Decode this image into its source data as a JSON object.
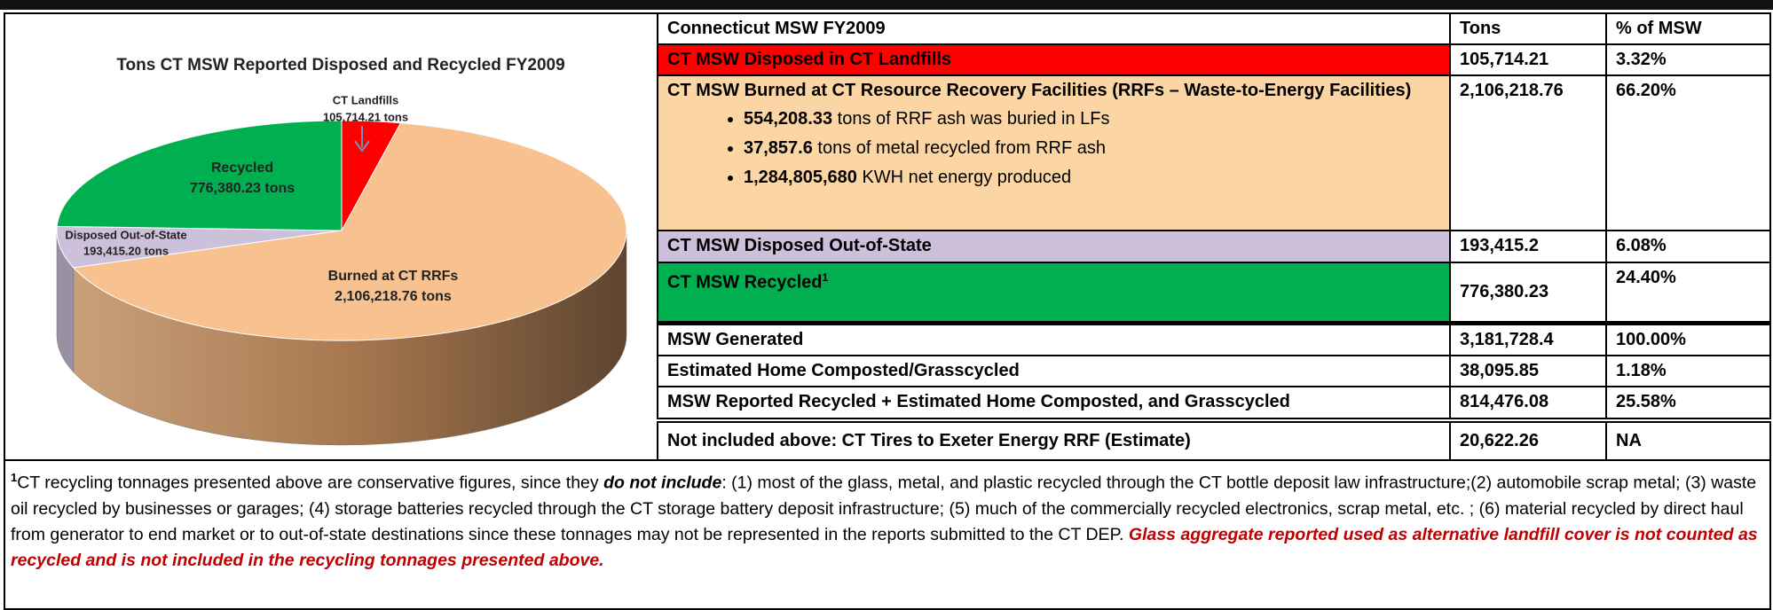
{
  "pie_chart": {
    "type": "pie",
    "title": "Tons CT MSW Reported Disposed and Recycled FY2009",
    "slices": [
      {
        "name": "CT Landfills",
        "value": 105714.21,
        "value_label": "105,714.21 tons",
        "color": "#ff0000"
      },
      {
        "name": "Burned at CT RRFs",
        "value": 2106218.76,
        "value_label": "2,106,218.76 tons",
        "color": "#f8c290"
      },
      {
        "name": "Disposed Out-of-State",
        "value": 193415.2,
        "value_label": "193,415.20 tons",
        "color": "#ccc0da"
      },
      {
        "name": "Recycled",
        "value": 776380.23,
        "value_label": "776,380.23 tons",
        "color": "#00b050"
      }
    ]
  },
  "table": {
    "header": [
      "Connecticut  MSW  FY2009",
      "Tons",
      "% of MSW"
    ],
    "rows": [
      {
        "cells": [
          "CT MSW Disposed in CT Landfills",
          "105,714.21",
          "3.32%"
        ]
      },
      {
        "cells": [
          "CT MSW Burned at CT Resource Recovery Facilities (RRFs – Waste-to-Energy Facilities)",
          "2,106,218.76",
          "66.20%"
        ],
        "bullets": [
          {
            "bold": "554,208.33",
            "text": " tons of RRF ash was buried in LFs"
          },
          {
            "bold": "37,857.6",
            "text": " tons of metal recycled from RRF ash"
          },
          {
            "bold": "1,284,805,680",
            "text": " KWH net energy produced"
          }
        ]
      },
      {
        "cells": [
          "CT MSW Disposed Out-of-State",
          "193,415.2",
          "6.08%"
        ]
      },
      {
        "cells": [
          "CT MSW Recycled",
          "776,380.23",
          "24.40%"
        ],
        "note": "1"
      },
      {
        "cells": [
          "MSW Generated",
          "3,181,728.4",
          "100.00%"
        ]
      },
      {
        "cells": [
          "Estimated Home Composted/Grasscycled",
          "38,095.85",
          "1.18%"
        ]
      },
      {
        "cells": [
          "MSW Reported Recycled + Estimated Home Composted, and Grasscycled",
          "814,476.08",
          "25.58%"
        ]
      },
      {
        "cells": [
          "Not included above: CT Tires to Exeter Energy RRF (Estimate)",
          "20,622.26",
          "NA"
        ]
      }
    ]
  },
  "footnote": {
    "marker": "1",
    "text1": "CT recycling tonnages presented above are conservative figures, since they ",
    "emphasis": "do not include",
    "text2": ":  (1) most of the glass, metal, and plastic recycled through the CT bottle deposit law infrastructure;(2) automobile scrap metal; (3) waste oil recycled by businesses or garages; (4) storage batteries recycled through the CT storage battery deposit infrastructure; (5) much of the commercially recycled electronics, scrap metal, etc. ; (6) material recycled by direct haul from generator to end market or to out-of-state destinations since these tonnages may not be represented in the reports submitted to the CT DEP.  ",
    "warning": "Glass aggregate reported used as alternative landfill cover is not counted as recycled and is not included in the recycling tonnages presented above."
  }
}
